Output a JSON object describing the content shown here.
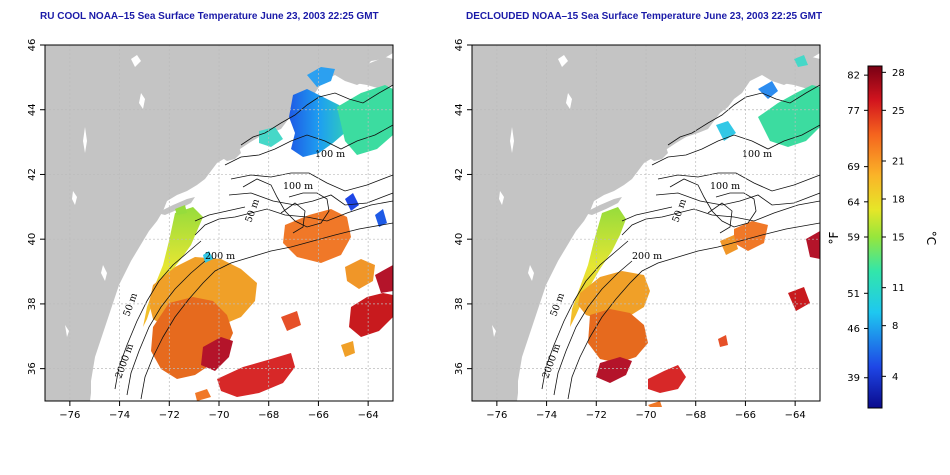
{
  "panels": [
    {
      "title": "RU COOL NOAA–15 Sea Surface Temperature June 23, 2003 22:25 GMT",
      "contour_labels": [
        "100 m",
        "100 m",
        "50 m",
        "200 m",
        "50 m",
        "2000 m"
      ]
    },
    {
      "title": "DECLOUDED NOAA–15 Sea Surface Temperature June 23, 2003 22:25 GMT",
      "contour_labels": [
        "100 m",
        "100 m",
        "50 m",
        "200 m",
        "50 m",
        "2000 m"
      ]
    }
  ],
  "axes": {
    "x_ticks": [
      "−76",
      "−74",
      "−72",
      "−70",
      "−68",
      "−66",
      "−64"
    ],
    "y_ticks": [
      "36",
      "38",
      "40",
      "42",
      "44",
      "46"
    ],
    "x_range": [
      -77.0,
      -63.0
    ],
    "y_range": [
      35.0,
      46.0
    ]
  },
  "colorbar": {
    "fahrenheit_ticks": [
      "82",
      "77",
      "69",
      "64",
      "59",
      "51",
      "46",
      "39"
    ],
    "celsius_ticks": [
      "28",
      "25",
      "21",
      "18",
      "15",
      "11",
      "8",
      "4"
    ],
    "fahrenheit_label": "°F",
    "celsius_label": "°C",
    "range_c": [
      1.5,
      28.5
    ]
  },
  "colors": {
    "land": "#c4c4c4",
    "title": "#1a1aa8",
    "warm": "#b00010",
    "cool": "#1e5ae6"
  }
}
